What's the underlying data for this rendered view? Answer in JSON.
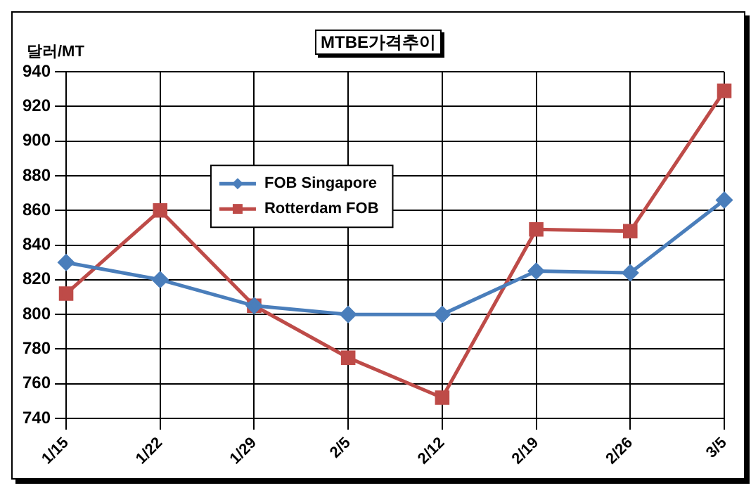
{
  "chart_data": {
    "type": "line",
    "title": "MTBE가격추이",
    "ylabel": "달러/MT",
    "categories": [
      "1/15",
      "1/22",
      "1/29",
      "2/5",
      "2/12",
      "2/19",
      "2/26",
      "3/5"
    ],
    "series": [
      {
        "name": "FOB Singapore",
        "color": "#4a7ebb",
        "marker": "diamond",
        "values": [
          830,
          820,
          805,
          800,
          800,
          825,
          824,
          866
        ]
      },
      {
        "name": "Rotterdam FOB",
        "color": "#be4b48",
        "marker": "square",
        "values": [
          812,
          860,
          805,
          775,
          752,
          849,
          848,
          929
        ]
      }
    ],
    "ylim": [
      740,
      940
    ],
    "yticks": [
      740,
      760,
      780,
      800,
      820,
      840,
      860,
      880,
      900,
      920,
      940
    ],
    "grid": true,
    "legend": "top left",
    "line_style": "solid"
  }
}
